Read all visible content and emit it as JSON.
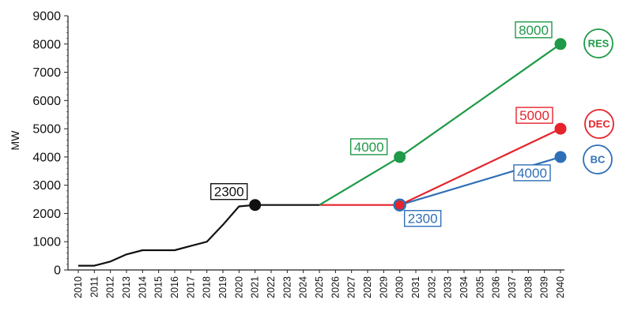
{
  "chart_data": {
    "type": "line",
    "ylabel": "MW",
    "xlabel": "",
    "ylim": [
      0,
      9000
    ],
    "y_ticks": [
      0,
      1000,
      2000,
      3000,
      4000,
      5000,
      6000,
      7000,
      8000,
      9000
    ],
    "x_ticks": [
      2010,
      2011,
      2012,
      2013,
      2014,
      2015,
      2016,
      2017,
      2018,
      2019,
      2020,
      2021,
      2022,
      2023,
      2024,
      2025,
      2026,
      2027,
      2028,
      2029,
      2030,
      2031,
      2032,
      2033,
      2034,
      2035,
      2036,
      2037,
      2038,
      2039,
      2040
    ],
    "grid": false,
    "series": [
      {
        "key": "hist",
        "color": "#111111",
        "points": [
          [
            2010,
            150
          ],
          [
            2011,
            150
          ],
          [
            2012,
            300
          ],
          [
            2013,
            550
          ],
          [
            2014,
            700
          ],
          [
            2015,
            700
          ],
          [
            2016,
            700
          ],
          [
            2017,
            850
          ],
          [
            2018,
            1000
          ],
          [
            2019,
            1600
          ],
          [
            2020,
            2250
          ],
          [
            2021,
            2300
          ],
          [
            2022,
            2300
          ],
          [
            2023,
            2300
          ],
          [
            2024,
            2300
          ],
          [
            2025,
            2300
          ]
        ],
        "marker": [
          2021,
          2300
        ]
      },
      {
        "key": "res",
        "name": "RES",
        "color": "#1f9a48",
        "points": [
          [
            2025,
            2300
          ],
          [
            2030,
            4000
          ],
          [
            2040,
            8000
          ]
        ],
        "markers": [
          [
            2030,
            4000
          ],
          [
            2040,
            8000
          ]
        ]
      },
      {
        "key": "dec",
        "name": "DEC",
        "color": "#e5242c",
        "points": [
          [
            2025,
            2300
          ],
          [
            2030,
            2300
          ],
          [
            2040,
            5000
          ]
        ],
        "markers": [
          [
            2040,
            5000
          ]
        ]
      },
      {
        "key": "bc",
        "name": "BC",
        "color": "#2f6fb7",
        "points": [
          [
            2030,
            2300
          ],
          [
            2040,
            4000
          ]
        ],
        "markers": [
          [
            2030,
            2300
          ],
          [
            2040,
            4000
          ]
        ]
      }
    ],
    "annotations": [
      {
        "text": "2300",
        "color": "#111111",
        "x": 2021,
        "y": 2300
      },
      {
        "text": "4000",
        "color": "#1f9a48",
        "x": 2030,
        "y": 4000
      },
      {
        "text": "8000",
        "color": "#1f9a48",
        "x": 2040,
        "y": 8000
      },
      {
        "text": "5000",
        "color": "#e5242c",
        "x": 2040,
        "y": 5000
      },
      {
        "text": "2300",
        "color": "#2f6fb7",
        "x": 2030,
        "y": 2300
      },
      {
        "text": "4000",
        "color": "#2f6fb7",
        "x": 2040,
        "y": 4000
      }
    ],
    "scenario_labels": [
      {
        "text": "RES",
        "color": "#1f9a48"
      },
      {
        "text": "DEC",
        "color": "#e5242c"
      },
      {
        "text": "BC",
        "color": "#2f6fb7"
      }
    ]
  }
}
